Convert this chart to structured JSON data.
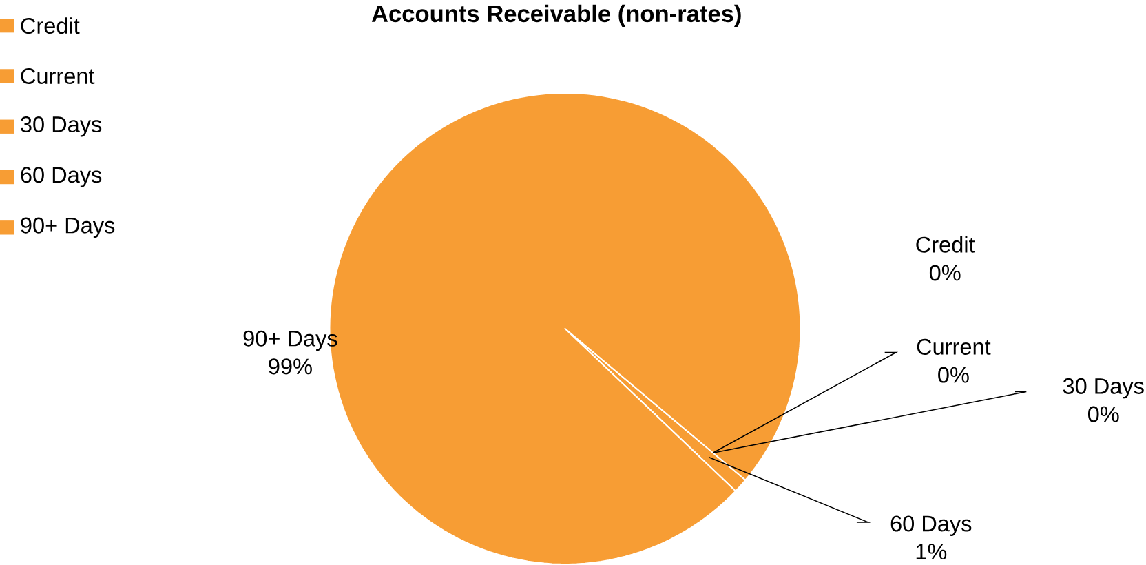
{
  "chart_data": {
    "type": "pie",
    "title": "Accounts Receivable (non-rates)",
    "categories": [
      "Credit",
      "Current",
      "30 Days",
      "60 Days",
      "90+ Days"
    ],
    "values": [
      0,
      0,
      0,
      1,
      99
    ],
    "value_labels": [
      "0%",
      "0%",
      "0%",
      "1%",
      "99%"
    ],
    "colors": [
      "#f79d34",
      "#f79d34",
      "#f79d34",
      "#f79d34",
      "#f79d34"
    ],
    "legend": "top left"
  }
}
